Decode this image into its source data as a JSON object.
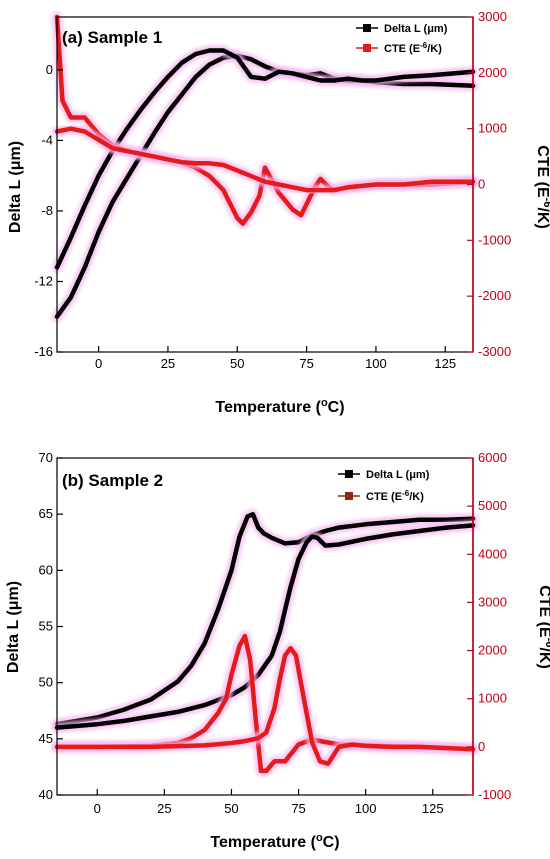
{
  "chart_data": [
    {
      "type": "line",
      "panel_label": "(a) Sample 1",
      "xlabel": "Temperature (",
      "xlabel_sup": "o",
      "xlabel_tail": "C)",
      "ylabel_left": "Delta L (",
      "ylabel_left_mu": "μ",
      "ylabel_left_tail": "m)",
      "ylabel_right": "CTE (E",
      "ylabel_right_sup": "-6",
      "ylabel_right_tail": "/K)",
      "xlim": [
        -15,
        135
      ],
      "ylim_left": [
        -16,
        3
      ],
      "ylim_right": [
        -3000,
        3000
      ],
      "x_ticks": [
        0,
        25,
        50,
        75,
        100,
        125
      ],
      "y_left_ticks": [
        -16,
        -12,
        -8,
        -4,
        0
      ],
      "y_right_ticks": [
        -3000,
        -2000,
        -1000,
        0,
        1000,
        2000,
        3000
      ],
      "legend_position": "top-right",
      "colors": {
        "delta_l": "#000000",
        "cte": "#e41a1c",
        "right_axis": "#c0001a",
        "glow": "#f7b8f0"
      },
      "legend": [
        {
          "label": "Delta L (μm)",
          "color": "#000000"
        },
        {
          "label_pre": "CTE (E",
          "label_sup": "-6",
          "label_post": "/K)",
          "color": "#e41a1c"
        }
      ],
      "series": [
        {
          "name": "Delta L (μm)",
          "axis": "left",
          "color": "#000000",
          "x": [
            -15,
            -10,
            -5,
            0,
            5,
            10,
            15,
            20,
            25,
            30,
            35,
            40,
            45,
            50,
            55,
            60,
            65,
            70,
            75,
            80,
            85,
            90,
            95,
            100,
            110,
            120,
            135
          ],
          "y": [
            -14,
            -12.9,
            -11.2,
            -9.2,
            -7.5,
            -6.2,
            -4.9,
            -3.6,
            -2.4,
            -1.4,
            -0.4,
            0.3,
            0.7,
            0.8,
            0.6,
            0.2,
            -0.1,
            -0.2,
            -0.3,
            -0.2,
            -0.5,
            -0.6,
            -0.6,
            -0.7,
            -0.8,
            -0.8,
            -0.9
          ]
        },
        {
          "name": "Delta L (μm)",
          "axis": "left",
          "color": "#000000",
          "x": [
            -15,
            -10,
            -5,
            0,
            5,
            10,
            15,
            20,
            25,
            30,
            35,
            40,
            45,
            50,
            55,
            60,
            65,
            70,
            75,
            80,
            85,
            90,
            95,
            100,
            110,
            120,
            135
          ],
          "y": [
            -11.2,
            -9.5,
            -7.7,
            -6.0,
            -4.6,
            -3.4,
            -2.3,
            -1.3,
            -0.4,
            0.4,
            0.9,
            1.1,
            1.1,
            0.7,
            -0.4,
            -0.5,
            -0.1,
            -0.2,
            -0.4,
            -0.6,
            -0.6,
            -0.5,
            -0.6,
            -0.6,
            -0.4,
            -0.3,
            -0.1
          ]
        },
        {
          "name": "CTE (E-6/K)",
          "axis": "right",
          "color": "#e41a1c",
          "x": [
            -15,
            -13,
            -10,
            -5,
            0,
            5,
            10,
            15,
            20,
            25,
            30,
            35,
            40,
            45,
            50,
            52,
            55,
            58,
            60,
            65,
            70,
            73,
            75,
            78,
            80,
            83,
            85,
            90,
            100,
            110,
            120,
            135
          ],
          "y": [
            3000,
            1500,
            1200,
            1200,
            900,
            700,
            600,
            550,
            500,
            450,
            400,
            300,
            150,
            -100,
            -600,
            -700,
            -500,
            -200,
            300,
            -150,
            -450,
            -550,
            -350,
            -50,
            100,
            -50,
            -100,
            -50,
            0,
            0,
            0,
            50
          ]
        },
        {
          "name": "CTE (E-6/K)",
          "axis": "right",
          "color": "#e41a1c",
          "x": [
            -15,
            -10,
            -5,
            0,
            5,
            10,
            15,
            20,
            25,
            30,
            35,
            40,
            45,
            50,
            55,
            60,
            65,
            70,
            75,
            80,
            85,
            90,
            100,
            110,
            120,
            135
          ],
          "y": [
            950,
            1000,
            950,
            800,
            650,
            600,
            550,
            500,
            450,
            400,
            380,
            380,
            350,
            250,
            150,
            50,
            0,
            -50,
            -100,
            -100,
            -100,
            -50,
            0,
            0,
            50,
            50
          ]
        }
      ]
    },
    {
      "type": "line",
      "panel_label": "(b) Sample 2",
      "xlabel": "Temperature (",
      "xlabel_sup": "o",
      "xlabel_tail": "C)",
      "ylabel_left": "Delta L (",
      "ylabel_left_mu": "μ",
      "ylabel_left_tail": "m)",
      "ylabel_right": "CTE (E",
      "ylabel_right_sup": "-6",
      "ylabel_right_tail": "/K)",
      "xlim": [
        -15,
        140
      ],
      "ylim_left": [
        40,
        70
      ],
      "ylim_right": [
        -1000,
        6000
      ],
      "x_ticks": [
        0,
        25,
        50,
        75,
        100,
        125
      ],
      "y_left_ticks": [
        40,
        45,
        50,
        55,
        60,
        65,
        70
      ],
      "y_right_ticks": [
        -1000,
        0,
        1000,
        2000,
        3000,
        4000,
        5000,
        6000
      ],
      "legend_position": "top-right",
      "colors": {
        "delta_l": "#000000",
        "cte": "#e41a1c",
        "right_axis": "#c0001a",
        "glow": "#f7b8f0"
      },
      "legend": [
        {
          "label": "Delta L (μm)",
          "color": "#000000"
        },
        {
          "label_pre": "CTE (E",
          "label_sup": "-6",
          "label_post": "/K)",
          "color": "#8b2a14"
        }
      ],
      "series": [
        {
          "name": "Delta L (μm)",
          "axis": "left",
          "color": "#000000",
          "x": [
            -15,
            0,
            10,
            20,
            30,
            35,
            40,
            45,
            50,
            53,
            56,
            58,
            60,
            62,
            65,
            70,
            75,
            80,
            85,
            90,
            100,
            110,
            120,
            130,
            140
          ],
          "y": [
            46.3,
            46.9,
            47.6,
            48.5,
            50.1,
            51.5,
            53.5,
            56.5,
            60.0,
            63.0,
            64.8,
            65.0,
            63.8,
            63.3,
            62.9,
            62.4,
            62.5,
            63.1,
            63.5,
            63.8,
            64.1,
            64.3,
            64.5,
            64.5,
            64.6
          ]
        },
        {
          "name": "Delta L (μm)",
          "axis": "left",
          "color": "#000000",
          "x": [
            -15,
            0,
            10,
            20,
            30,
            40,
            50,
            55,
            60,
            65,
            68,
            70,
            72,
            75,
            78,
            80,
            82,
            85,
            90,
            100,
            110,
            120,
            130,
            140
          ],
          "y": [
            46.0,
            46.3,
            46.6,
            47.0,
            47.4,
            48.0,
            48.9,
            49.6,
            50.7,
            52.4,
            54.5,
            56.5,
            58.5,
            61.0,
            62.5,
            63.0,
            62.9,
            62.2,
            62.3,
            62.8,
            63.2,
            63.5,
            63.8,
            64.0
          ]
        },
        {
          "name": "CTE (E-6/K)",
          "axis": "right",
          "color": "#e41a1c",
          "x": [
            -15,
            0,
            20,
            30,
            35,
            40,
            45,
            48,
            50,
            53,
            55,
            57,
            59,
            61,
            63,
            66,
            70,
            75,
            80,
            85,
            90,
            100,
            110,
            120,
            140
          ],
          "y": [
            0,
            0,
            20,
            80,
            180,
            350,
            700,
            1000,
            1500,
            2100,
            2300,
            1800,
            600,
            -500,
            -500,
            -300,
            -300,
            50,
            150,
            100,
            50,
            30,
            10,
            0,
            -50
          ]
        },
        {
          "name": "CTE (E-6/K)",
          "axis": "right",
          "color": "#e41a1c",
          "x": [
            -15,
            0,
            20,
            40,
            50,
            55,
            60,
            63,
            66,
            68,
            70,
            72,
            74,
            76,
            78,
            80,
            83,
            86,
            90,
            95,
            100,
            110,
            120,
            140
          ],
          "y": [
            0,
            0,
            0,
            30,
            80,
            120,
            180,
            300,
            800,
            1400,
            1900,
            2050,
            1900,
            1300,
            700,
            100,
            -300,
            -350,
            0,
            50,
            20,
            0,
            0,
            -50
          ]
        }
      ]
    }
  ]
}
